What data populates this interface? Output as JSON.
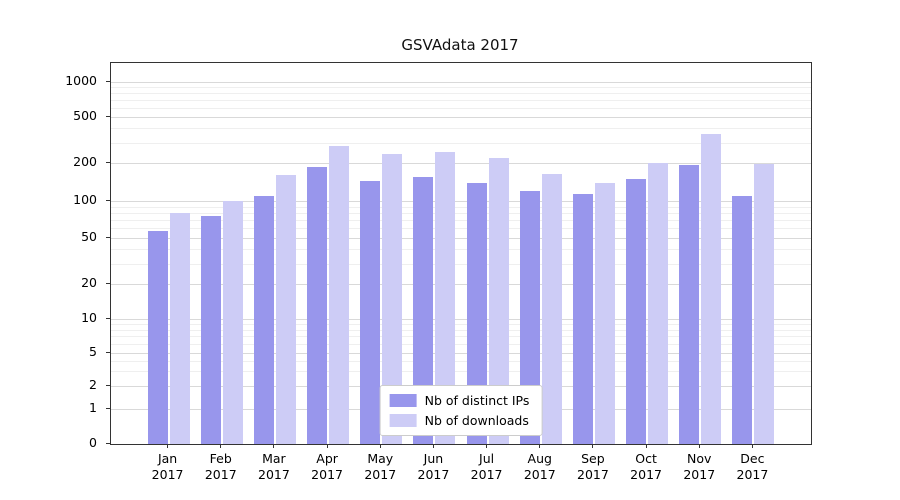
{
  "title": "GSVAdata 2017",
  "colors": {
    "bar_distinct_ips": "#9896ec",
    "bar_downloads": "#cdccf6",
    "grid_major": "#d9d9d9",
    "grid_minor": "#efefef",
    "spine": "#333333",
    "legend_border": "#cccccc",
    "background": "#ffffff"
  },
  "chart_data": {
    "type": "bar",
    "title": "GSVAdata 2017",
    "yscale": "symlog",
    "grid": true,
    "categories": [
      "Jan 2017",
      "Feb 2017",
      "Mar 2017",
      "Apr 2017",
      "May 2017",
      "Jun 2017",
      "Jul 2017",
      "Aug 2017",
      "Sep 2017",
      "Oct 2017",
      "Nov 2017",
      "Dec 2017"
    ],
    "series": [
      {
        "key": "distinct-ips",
        "name": "Nb of distinct IPs",
        "color": "#9896ec",
        "values": [
          57,
          75,
          110,
          185,
          145,
          155,
          140,
          120,
          113,
          150,
          195,
          110
        ]
      },
      {
        "key": "downloads",
        "name": "Nb of downloads",
        "color": "#cdccf6",
        "values": [
          80,
          100,
          160,
          280,
          240,
          250,
          220,
          165,
          140,
          200,
          360,
          197
        ]
      }
    ],
    "yticks": [
      0,
      1,
      2,
      5,
      10,
      20,
      50,
      100,
      200,
      500,
      1000
    ],
    "minor_yticks": [
      3,
      4,
      6,
      7,
      8,
      9,
      30,
      40,
      60,
      70,
      80,
      90,
      300,
      400,
      600,
      700,
      800,
      900
    ],
    "ylim": [
      0,
      1400
    ],
    "legend": {
      "position": "lower center",
      "entries": [
        "Nb of distinct IPs",
        "Nb of downloads"
      ]
    }
  }
}
